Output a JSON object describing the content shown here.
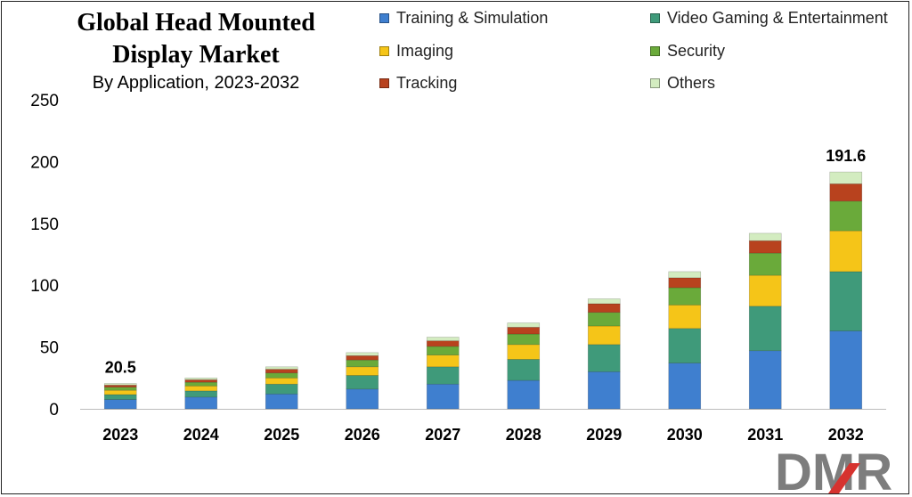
{
  "chart_data": {
    "type": "bar",
    "stacked": true,
    "title": "Global Head Mounted Display Market",
    "subtitle": "By Application, 2023-2032",
    "xlabel": "",
    "ylabel": "",
    "ylim": [
      0,
      250
    ],
    "yticks": [
      "0",
      "50",
      "100",
      "150",
      "200",
      "250"
    ],
    "categories": [
      "2023",
      "2024",
      "2025",
      "2026",
      "2027",
      "2028",
      "2029",
      "2030",
      "2031",
      "2032"
    ],
    "series": [
      {
        "name": "Training & Simulation",
        "color": "#3f7fcf",
        "values": [
          7.5,
          9.5,
          12,
          16,
          20,
          23,
          30,
          37,
          47,
          63
        ]
      },
      {
        "name": "Video Gaming & Entertainment",
        "color": "#3f9a7a",
        "values": [
          4,
          5,
          8,
          11,
          14,
          17,
          22,
          28,
          36,
          48
        ]
      },
      {
        "name": "Imaging",
        "color": "#f5c518",
        "values": [
          3.5,
          4,
          5,
          7,
          9.5,
          12,
          15,
          19,
          25,
          33
        ]
      },
      {
        "name": "Security",
        "color": "#6aaa3a",
        "values": [
          2.5,
          3,
          4,
          5.5,
          7,
          8.5,
          11,
          14,
          18,
          24
        ]
      },
      {
        "name": "Tracking",
        "color": "#b8421e",
        "values": [
          1.7,
          2,
          3,
          3.5,
          4.5,
          5.5,
          7,
          8,
          10,
          14
        ]
      },
      {
        "name": "Others",
        "color": "#d3ecc0",
        "values": [
          1.3,
          1.5,
          2,
          2.5,
          3,
          3.5,
          4,
          5,
          6,
          9.6
        ]
      }
    ],
    "annotations": [
      {
        "category": "2023",
        "label": "20.5"
      },
      {
        "category": "2032",
        "label": "191.6"
      }
    ]
  },
  "logo": {
    "text": "DMR"
  }
}
